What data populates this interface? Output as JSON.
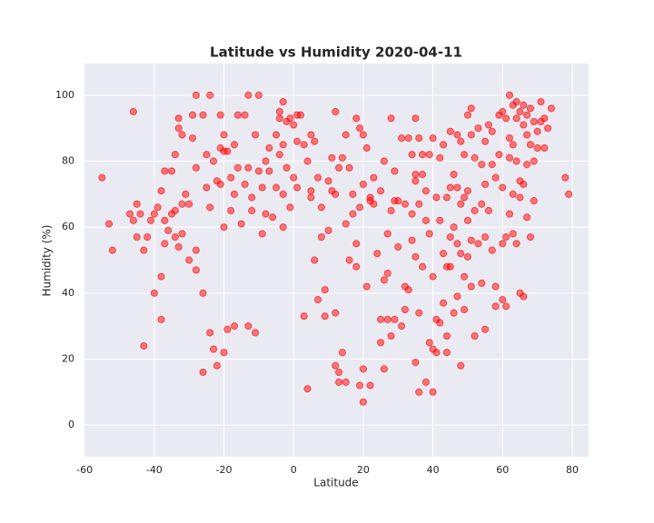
{
  "chart_data": {
    "type": "scatter",
    "title": "Latitude vs Humidity 2020-04-11",
    "x_label": "Latitude",
    "y_label": "Humidity (%)",
    "xlim": [
      -60.3,
      84.7
    ],
    "ylim": [
      -9.6,
      109.6
    ],
    "xticks": [
      -60,
      -40,
      -20,
      0,
      20,
      40,
      60,
      80
    ],
    "yticks": [
      0,
      20,
      40,
      60,
      80,
      100
    ],
    "grid": true,
    "background": "#eaeaf2",
    "color": "#ff0000",
    "x": [
      -55,
      -53,
      -52,
      -47,
      -46,
      -46,
      -45,
      -45,
      -44,
      -43,
      -43,
      -42,
      -41,
      -40,
      -40,
      -39,
      -38,
      -38,
      -38,
      -37,
      -37,
      -37,
      -36,
      -35,
      -35,
      -34,
      -34,
      -34,
      -33,
      -33,
      -33,
      -32,
      -32,
      -32,
      -31,
      -30,
      -30,
      -29,
      -29,
      -28,
      -28,
      -28,
      -28,
      -26,
      -26,
      -26,
      -25,
      -25,
      -24,
      -24,
      -24,
      -23,
      -23,
      -22,
      -22,
      -21,
      -21,
      -21,
      -20,
      -20,
      -20,
      -20,
      -19,
      -19,
      -18,
      -18,
      -17,
      -17,
      -17,
      -16,
      -16,
      -15,
      -14,
      -14,
      -13,
      -13,
      -13,
      -12,
      -12,
      -11,
      -11,
      -10,
      -10,
      -9,
      -9,
      -8,
      -8,
      -7,
      -7,
      -6,
      -5,
      -5,
      -4,
      -4,
      -4,
      -3,
      -3,
      -3,
      -3,
      -2,
      -2,
      -1,
      -1,
      0,
      0,
      1,
      1,
      1,
      2,
      3,
      3,
      4,
      4,
      5,
      5,
      5,
      6,
      6,
      7,
      7,
      8,
      8,
      9,
      9,
      10,
      10,
      11,
      11,
      12,
      12,
      12,
      12,
      13,
      13,
      13,
      14,
      14,
      15,
      15,
      15,
      16,
      16,
      17,
      17,
      18,
      18,
      18,
      19,
      19,
      19,
      20,
      20,
      20,
      20,
      21,
      21,
      22,
      22,
      22,
      23,
      23,
      24,
      25,
      25,
      25,
      26,
      26,
      26,
      27,
      27,
      27,
      28,
      28,
      28,
      29,
      29,
      29,
      30,
      30,
      31,
      31,
      32,
      32,
      32,
      33,
      33,
      34,
      34,
      34,
      35,
      35,
      35,
      35,
      35,
      36,
      36,
      36,
      36,
      37,
      37,
      37,
      38,
      38,
      38,
      39,
      39,
      39,
      40,
      40,
      40,
      40,
      41,
      41,
      41,
      42,
      42,
      42,
      43,
      43,
      43,
      44,
      44,
      44,
      44,
      45,
      45,
      45,
      45,
      46,
      46,
      46,
      47,
      47,
      47,
      47,
      48,
      48,
      48,
      48,
      49,
      49,
      49,
      49,
      50,
      50,
      50,
      50,
      51,
      51,
      51,
      51,
      52,
      52,
      52,
      53,
      53,
      54,
      54,
      54,
      55,
      55,
      55,
      55,
      56,
      56,
      57,
      57,
      57,
      58,
      58,
      58,
      59,
      59,
      60,
      60,
      60,
      60,
      61,
      61,
      61,
      62,
      62,
      62,
      62,
      63,
      63,
      63,
      63,
      64,
      64,
      64,
      64,
      65,
      65,
      65,
      65,
      66,
      66,
      66,
      66,
      67,
      67,
      67,
      67,
      68,
      68,
      68,
      69,
      69,
      69,
      70,
      70,
      71,
      71,
      72,
      72,
      73,
      74,
      78,
      79
    ],
    "values": [
      75,
      61,
      53,
      64,
      95,
      62,
      67,
      57,
      64,
      53,
      24,
      57,
      62,
      64,
      40,
      66,
      32,
      45,
      71,
      77,
      62,
      55,
      59,
      64,
      77,
      65,
      57,
      82,
      93,
      90,
      54,
      88,
      67,
      58,
      70,
      50,
      67,
      94,
      87,
      100,
      78,
      53,
      47,
      94,
      16,
      40,
      82,
      72,
      100,
      66,
      28,
      80,
      23,
      74,
      18,
      94,
      84,
      73,
      88,
      83,
      60,
      22,
      83,
      29,
      65,
      75,
      85,
      70,
      30,
      94,
      78,
      61,
      94,
      73,
      100,
      78,
      30,
      69,
      65,
      88,
      28,
      100,
      77,
      58,
      72,
      80,
      64,
      84,
      77,
      63,
      72,
      88,
      82,
      95,
      93,
      98,
      85,
      70,
      60,
      92,
      78,
      93,
      66,
      91,
      75,
      94,
      86,
      72,
      94,
      33,
      85,
      11,
      80,
      88,
      71,
      69,
      86,
      50,
      75,
      38,
      57,
      66,
      41,
      33,
      74,
      59,
      81,
      71,
      95,
      70,
      18,
      34,
      78,
      16,
      13,
      22,
      81,
      88,
      61,
      13,
      78,
      50,
      70,
      64,
      55,
      93,
      48,
      90,
      66,
      12,
      88,
      73,
      17,
      7,
      84,
      42,
      69,
      68,
      12,
      75,
      67,
      52,
      71,
      25,
      32,
      44,
      80,
      17,
      58,
      46,
      32,
      65,
      93,
      27,
      77,
      68,
      32,
      54,
      68,
      87,
      30,
      35,
      67,
      42,
      87,
      41,
      82,
      64,
      56,
      93,
      76,
      74,
      51,
      19,
      87,
      67,
      10,
      34,
      82,
      76,
      48,
      71,
      62,
      13,
      82,
      58,
      25,
      87,
      45,
      10,
      23,
      69,
      32,
      22,
      81,
      62,
      31,
      85,
      52,
      37,
      69,
      48,
      27,
      22,
      89,
      72,
      57,
      48,
      76,
      60,
      34,
      88,
      72,
      55,
      39,
      86,
      67,
      18,
      52,
      82,
      69,
      45,
      35,
      94,
      71,
      62,
      51,
      96,
      88,
      56,
      42,
      81,
      65,
      27,
      90,
      55,
      79,
      67,
      43,
      86,
      73,
      57,
      29,
      91,
      65,
      79,
      89,
      53,
      75,
      42,
      36,
      94,
      82,
      95,
      72,
      55,
      38,
      93,
      57,
      36,
      100,
      87,
      81,
      64,
      97,
      85,
      58,
      70,
      98,
      93,
      80,
      55,
      95,
      74,
      69,
      40,
      97,
      91,
      73,
      39,
      94,
      88,
      79,
      63,
      96,
      85,
      57,
      92,
      80,
      68,
      89,
      84,
      98,
      92,
      93,
      84,
      90,
      96,
      75,
      70
    ]
  }
}
